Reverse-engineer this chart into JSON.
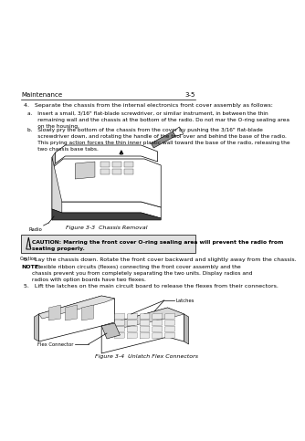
{
  "bg_color": "#ffffff",
  "header_left": "Maintenance",
  "header_right": "3-5",
  "header_fontsize": 5.0,
  "step4_text": "4.   Separate the chassis from the internal electronics front cover assembly as follows:",
  "step4a_text": "a.   Insert a small, 3/16\" flat-blade screwdriver, or similar instrument, in between the thin\n      remaining wall and the chassis at the bottom of the radio. Do not mar the O-ring sealing area\n      on the housing.",
  "step4b_text": "b.   Slowly pry the bottom of the chassis from the cover by pushing the 3/16\" flat-blade\n      screwdriver down, and rotating the handle of the tool over and behind the base of the radio.\n      This prying action forces the thin inner plastic wall toward the base of the radio, releasing the\n      two chassis base tabs.",
  "fig3_3_caption": "Figure 3-3  Chassis Removal",
  "radio_label": "Radio",
  "caution_label": "Caution",
  "caution_text": "CAUTION: Marring the front cover O-ring sealing area will prevent the radio from\nseating properly.",
  "step5a_text": "5.   Lay the chassis down. Rotate the front cover backward and slightly away from the chassis.",
  "note_label": "NOTE:",
  "note_text": "  Flexible ribbon circuits (flexes) connecting the front cover assembly and the\nchassis prevent you from completely separating the two units. Display radios and\nradios with option boards have two flexes.",
  "step5b_text": "5.   Lift the latches on the main circuit board to release the flexes from their connectors.",
  "fig3_4_caption": "Figure 3-4  Unlatch Flex Connectors",
  "latches_label": "Latches",
  "flex_label": "Flex Connector",
  "caution_bg": "#e0e0e0",
  "text_fontsize": 4.5,
  "small_fontsize": 4.2,
  "caption_fontsize": 4.5,
  "note_fontsize": 4.5
}
